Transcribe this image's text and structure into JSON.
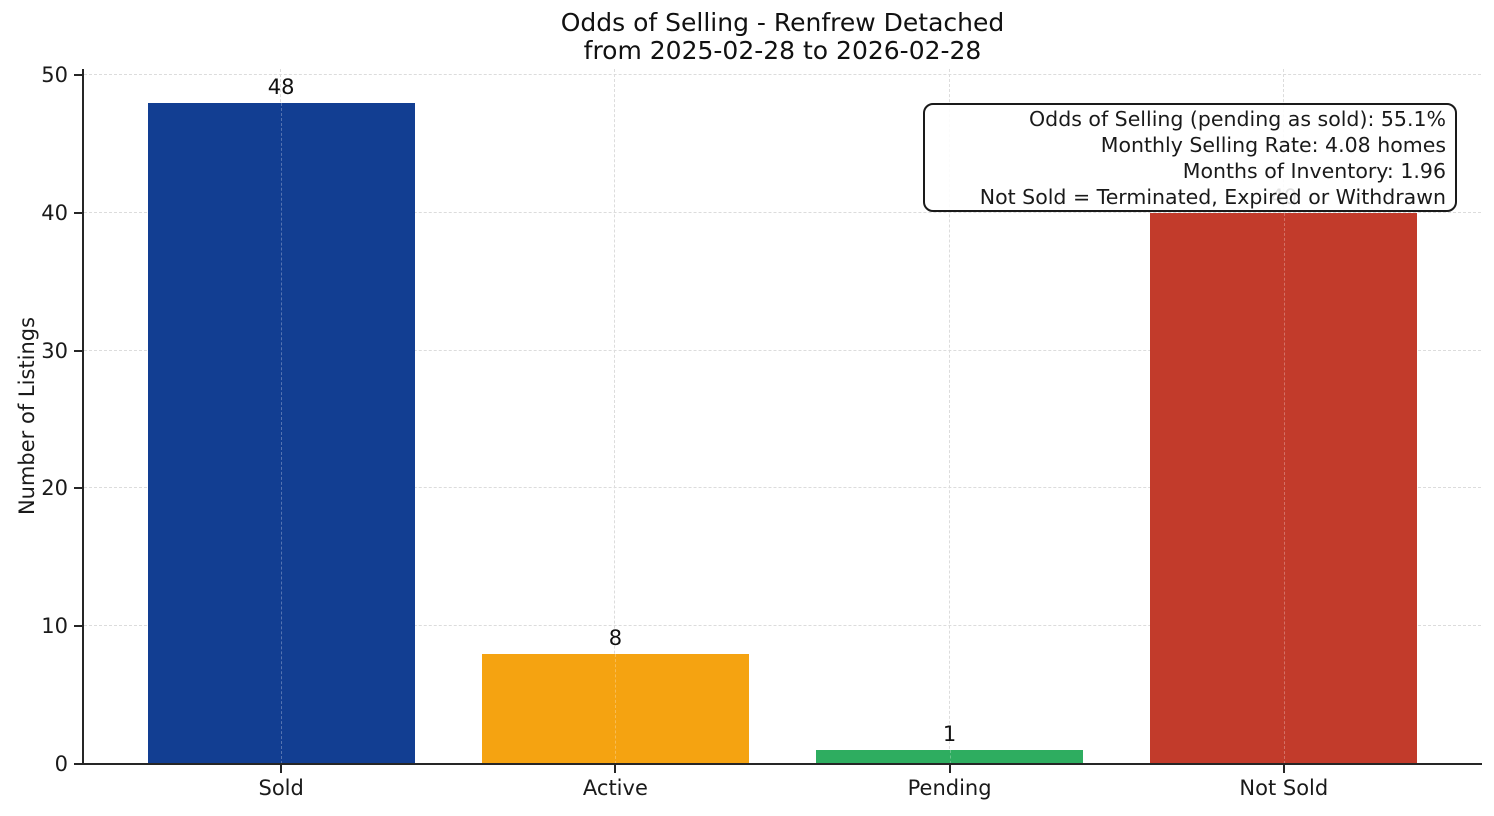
{
  "chart_data": {
    "type": "bar",
    "title": "Odds of Selling - Renfrew Detached\nfrom 2025-02-28 to 2026-02-28",
    "title_line1": "Odds of Selling - Renfrew Detached",
    "title_line2": "from 2025-02-28 to 2026-02-28",
    "xlabel": "",
    "ylabel": "Number of Listings",
    "categories": [
      "Sold",
      "Active",
      "Pending",
      "Not Sold"
    ],
    "values": [
      48,
      8,
      1,
      40
    ],
    "bar_value_labels": [
      "48",
      "8",
      "1",
      "40"
    ],
    "bar_colors": [
      "#123e92",
      "#f5a311",
      "#2ead60",
      "#c23b2b"
    ],
    "yticks": [
      0,
      10,
      20,
      30,
      40,
      50
    ],
    "ylim": [
      0,
      50
    ],
    "grid": "dashed light-gray horizontal and vertical gridlines",
    "legend": "none",
    "annotation": {
      "position": "top-right",
      "lines": [
        "Odds of Selling (pending as sold): 55.1%",
        "Monthly Selling Rate: 4.08 homes",
        "Months of Inventory: 1.96",
        "Not Sold = Terminated, Expired or Withdrawn"
      ]
    }
  }
}
